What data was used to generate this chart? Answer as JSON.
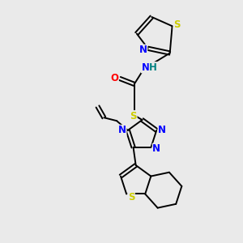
{
  "background_color": "#eaeaea",
  "atom_colors": {
    "C": "#000000",
    "N": "#0000ff",
    "O": "#ff0000",
    "S": "#cccc00",
    "H": "#008080"
  },
  "figsize": [
    3.0,
    3.0
  ],
  "dpi": 100,
  "bond_lw": 1.4,
  "fontsize": 8.5
}
